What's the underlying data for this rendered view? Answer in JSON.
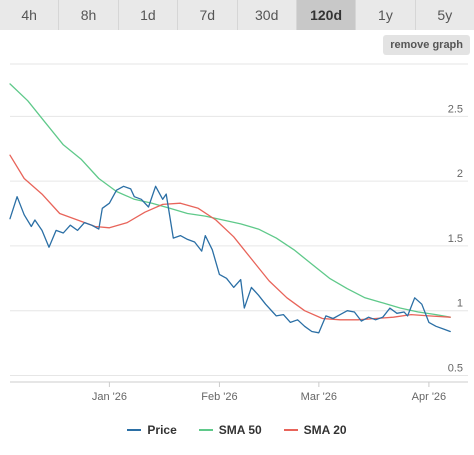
{
  "range_buttons": [
    {
      "label": "4h",
      "active": false
    },
    {
      "label": "8h",
      "active": false
    },
    {
      "label": "1d",
      "active": false
    },
    {
      "label": "7d",
      "active": false
    },
    {
      "label": "30d",
      "active": false
    },
    {
      "label": "120d",
      "active": true
    },
    {
      "label": "1y",
      "active": false
    },
    {
      "label": "5y",
      "active": false
    }
  ],
  "remove_graph_label": "remove graph",
  "chart_data": {
    "type": "line",
    "title": "",
    "xlabel": "",
    "ylabel": "",
    "x_start": "2025-12-04",
    "x_end": "2026-04-03",
    "x_ticks": [
      {
        "date": "2026-01-01",
        "label": "Jan '26"
      },
      {
        "date": "2026-02-01",
        "label": "Feb '26"
      },
      {
        "date": "2026-03-01",
        "label": "Mar '26"
      },
      {
        "date": "2026-04-01",
        "label": "Apr '26"
      }
    ],
    "y_ticks": [
      0.5,
      1,
      1.5,
      2,
      2.5
    ],
    "ylim": [
      0.45,
      2.95
    ],
    "grid": true,
    "legend_position": "bottom",
    "series": [
      {
        "name": "Price",
        "color": "#2b6fa5",
        "points": [
          [
            "2025-12-04",
            1.71
          ],
          [
            "2025-12-06",
            1.88
          ],
          [
            "2025-12-08",
            1.74
          ],
          [
            "2025-12-10",
            1.65
          ],
          [
            "2025-12-11",
            1.7
          ],
          [
            "2025-12-13",
            1.62
          ],
          [
            "2025-12-15",
            1.49
          ],
          [
            "2025-12-17",
            1.62
          ],
          [
            "2025-12-19",
            1.6
          ],
          [
            "2025-12-21",
            1.66
          ],
          [
            "2025-12-23",
            1.62
          ],
          [
            "2025-12-25",
            1.68
          ],
          [
            "2025-12-27",
            1.66
          ],
          [
            "2025-12-29",
            1.63
          ],
          [
            "2025-12-30",
            1.79
          ],
          [
            "2026-01-01",
            1.83
          ],
          [
            "2026-01-03",
            1.93
          ],
          [
            "2026-01-05",
            1.96
          ],
          [
            "2026-01-07",
            1.94
          ],
          [
            "2026-01-08",
            1.88
          ],
          [
            "2026-01-10",
            1.86
          ],
          [
            "2026-01-12",
            1.8
          ],
          [
            "2026-01-14",
            1.96
          ],
          [
            "2026-01-16",
            1.86
          ],
          [
            "2026-01-17",
            1.9
          ],
          [
            "2026-01-19",
            1.56
          ],
          [
            "2026-01-21",
            1.58
          ],
          [
            "2026-01-23",
            1.55
          ],
          [
            "2026-01-25",
            1.53
          ],
          [
            "2026-01-27",
            1.46
          ],
          [
            "2026-01-28",
            1.58
          ],
          [
            "2026-01-30",
            1.47
          ],
          [
            "2026-02-01",
            1.28
          ],
          [
            "2026-02-03",
            1.25
          ],
          [
            "2026-02-05",
            1.18
          ],
          [
            "2026-02-07",
            1.24
          ],
          [
            "2026-02-08",
            1.02
          ],
          [
            "2026-02-10",
            1.18
          ],
          [
            "2026-02-12",
            1.12
          ],
          [
            "2026-02-14",
            1.05
          ],
          [
            "2026-02-16",
            0.99
          ],
          [
            "2026-02-17",
            0.96
          ],
          [
            "2026-02-19",
            0.97
          ],
          [
            "2026-02-21",
            0.91
          ],
          [
            "2026-02-23",
            0.93
          ],
          [
            "2026-02-25",
            0.88
          ],
          [
            "2026-02-27",
            0.84
          ],
          [
            "2026-03-01",
            0.83
          ],
          [
            "2026-03-03",
            0.96
          ],
          [
            "2026-03-05",
            0.94
          ],
          [
            "2026-03-07",
            0.97
          ],
          [
            "2026-03-09",
            1.0
          ],
          [
            "2026-03-11",
            0.99
          ],
          [
            "2026-03-13",
            0.92
          ],
          [
            "2026-03-15",
            0.95
          ],
          [
            "2026-03-17",
            0.93
          ],
          [
            "2026-03-19",
            0.95
          ],
          [
            "2026-03-21",
            1.02
          ],
          [
            "2026-03-23",
            0.98
          ],
          [
            "2026-03-25",
            0.99
          ],
          [
            "2026-03-26",
            0.96
          ],
          [
            "2026-03-28",
            1.1
          ],
          [
            "2026-03-30",
            1.05
          ],
          [
            "2026-04-01",
            0.91
          ],
          [
            "2026-04-03",
            0.88
          ],
          [
            "2026-04-05",
            0.86
          ],
          [
            "2026-04-07",
            0.84
          ]
        ]
      },
      {
        "name": "SMA 50",
        "color": "#5fc98a",
        "points": [
          [
            "2025-12-04",
            2.75
          ],
          [
            "2025-12-09",
            2.62
          ],
          [
            "2025-12-14",
            2.45
          ],
          [
            "2025-12-19",
            2.28
          ],
          [
            "2025-12-24",
            2.17
          ],
          [
            "2025-12-29",
            2.02
          ],
          [
            "2026-01-03",
            1.92
          ],
          [
            "2026-01-08",
            1.86
          ],
          [
            "2026-01-13",
            1.83
          ],
          [
            "2026-01-18",
            1.79
          ],
          [
            "2026-01-23",
            1.75
          ],
          [
            "2026-01-28",
            1.73
          ],
          [
            "2026-02-02",
            1.7
          ],
          [
            "2026-02-07",
            1.67
          ],
          [
            "2026-02-12",
            1.63
          ],
          [
            "2026-02-17",
            1.56
          ],
          [
            "2026-02-22",
            1.47
          ],
          [
            "2026-02-27",
            1.36
          ],
          [
            "2026-03-04",
            1.25
          ],
          [
            "2026-03-09",
            1.17
          ],
          [
            "2026-03-14",
            1.1
          ],
          [
            "2026-03-19",
            1.06
          ],
          [
            "2026-03-24",
            1.02
          ],
          [
            "2026-03-29",
            0.99
          ],
          [
            "2026-04-03",
            0.97
          ],
          [
            "2026-04-07",
            0.95
          ]
        ]
      },
      {
        "name": "SMA 20",
        "color": "#e8645a",
        "points": [
          [
            "2025-12-04",
            2.2
          ],
          [
            "2025-12-08",
            2.02
          ],
          [
            "2025-12-13",
            1.9
          ],
          [
            "2025-12-18",
            1.75
          ],
          [
            "2025-12-23",
            1.7
          ],
          [
            "2025-12-28",
            1.65
          ],
          [
            "2026-01-01",
            1.64
          ],
          [
            "2026-01-06",
            1.68
          ],
          [
            "2026-01-11",
            1.76
          ],
          [
            "2026-01-16",
            1.82
          ],
          [
            "2026-01-21",
            1.83
          ],
          [
            "2026-01-26",
            1.79
          ],
          [
            "2026-01-31",
            1.7
          ],
          [
            "2026-02-05",
            1.57
          ],
          [
            "2026-02-10",
            1.4
          ],
          [
            "2026-02-15",
            1.23
          ],
          [
            "2026-02-20",
            1.1
          ],
          [
            "2026-02-25",
            1.0
          ],
          [
            "2026-03-02",
            0.94
          ],
          [
            "2026-03-07",
            0.93
          ],
          [
            "2026-03-12",
            0.93
          ],
          [
            "2026-03-17",
            0.94
          ],
          [
            "2026-03-22",
            0.95
          ],
          [
            "2026-03-27",
            0.97
          ],
          [
            "2026-04-01",
            0.96
          ],
          [
            "2026-04-07",
            0.95
          ]
        ]
      }
    ]
  }
}
